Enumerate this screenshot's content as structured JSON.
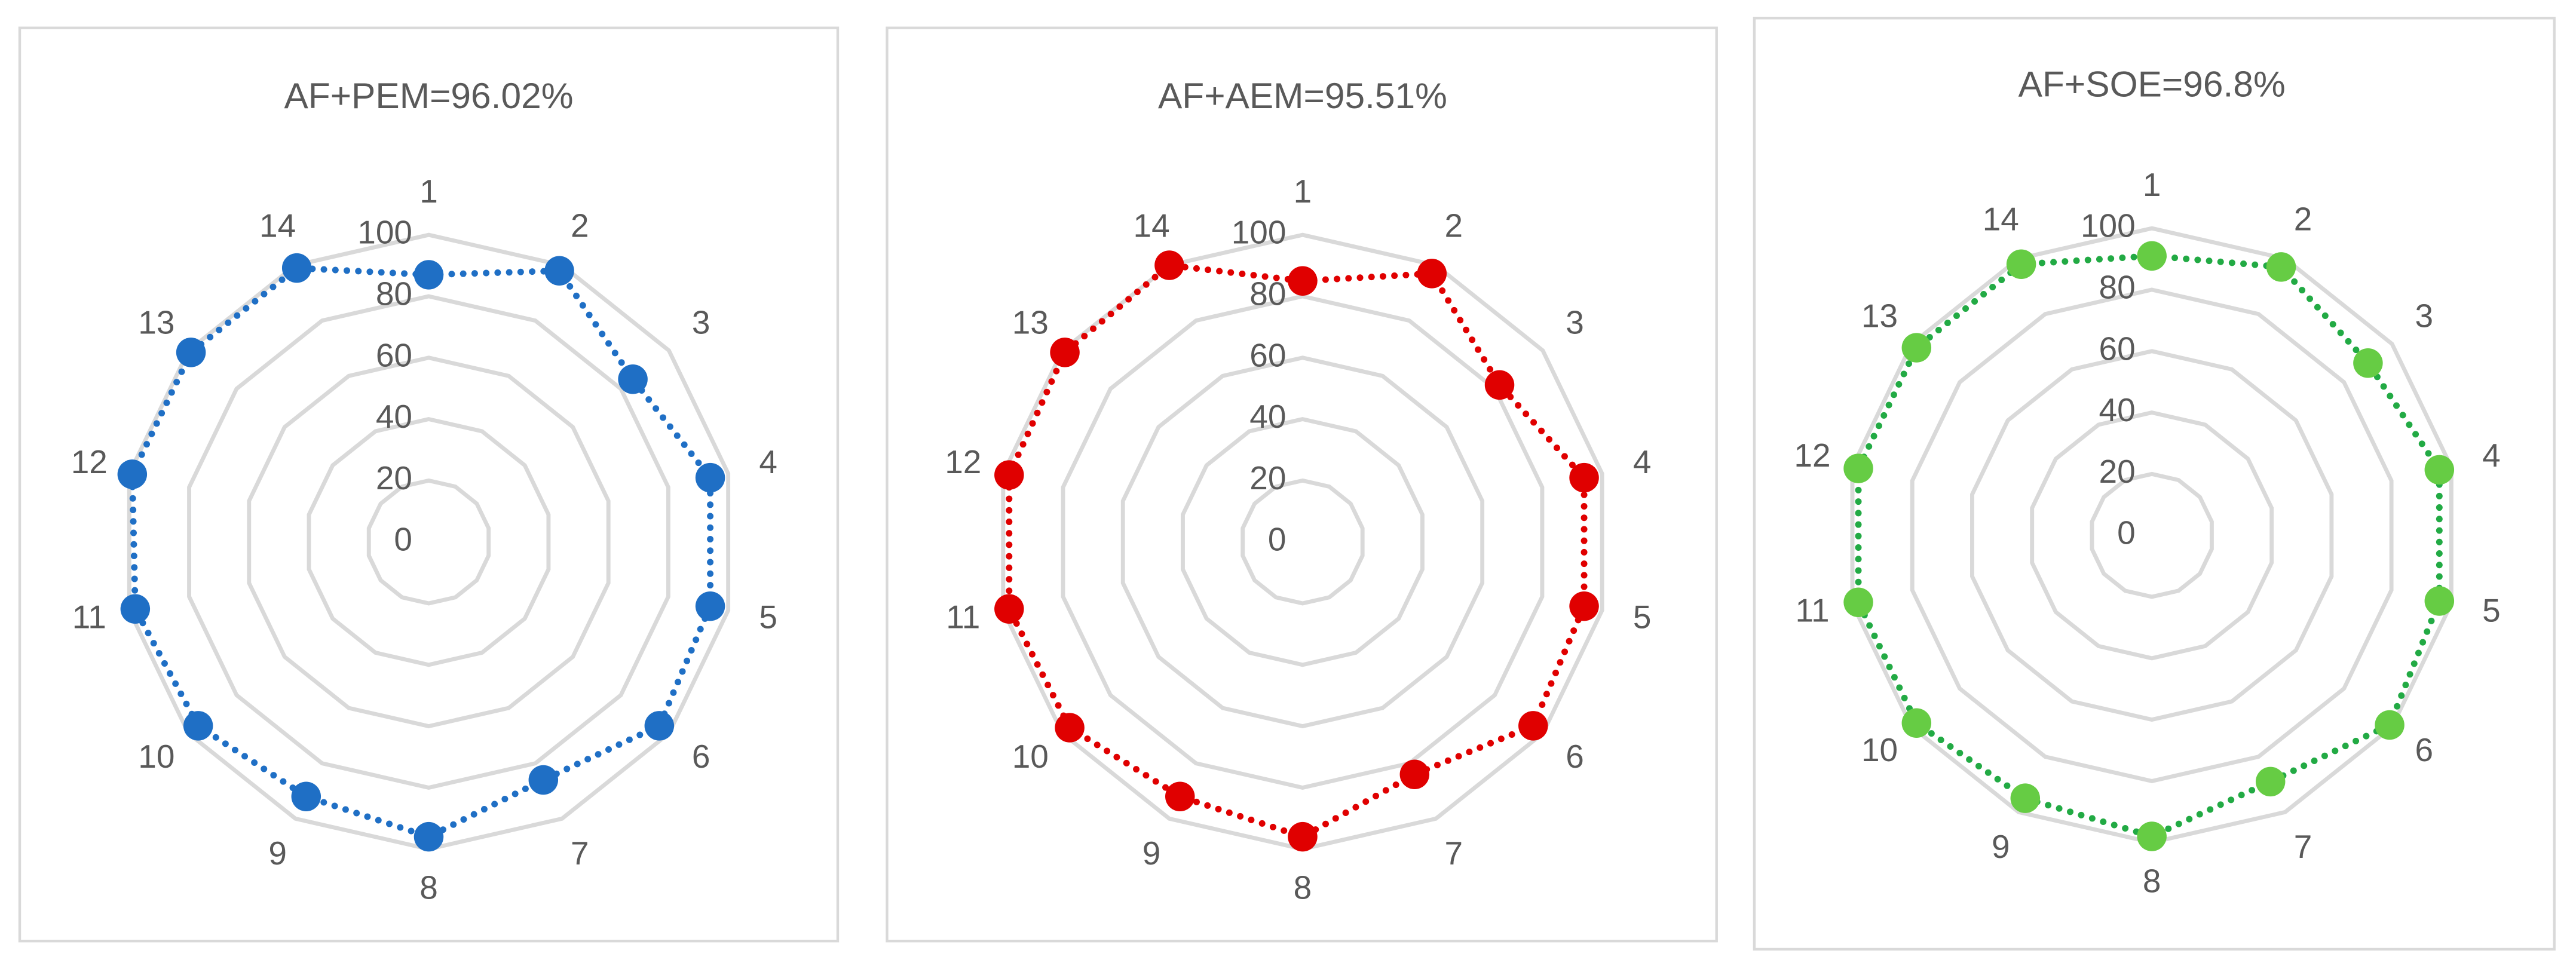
{
  "chart_data": [
    {
      "type": "radar",
      "title": "AF+PEM=96.02%",
      "categories": [
        "1",
        "2",
        "3",
        "4",
        "5",
        "6",
        "7",
        "8",
        "9",
        "10",
        "11",
        "12",
        "13",
        "14"
      ],
      "values": [
        87,
        98,
        85,
        94,
        94,
        96,
        86,
        96,
        92,
        96,
        98,
        99,
        99,
        99
      ],
      "color": "#1f6fc5",
      "marker_color": "#1f6fc5",
      "rlim": [
        0,
        100
      ],
      "rticks": [
        0,
        20,
        40,
        60,
        80,
        100
      ]
    },
    {
      "type": "radar",
      "title": "AF+AEM=95.51%",
      "categories": [
        "1",
        "2",
        "3",
        "4",
        "5",
        "6",
        "7",
        "8",
        "9",
        "10",
        "11",
        "12",
        "13",
        "14"
      ],
      "values": [
        85,
        97,
        82,
        94,
        94,
        96,
        84,
        96,
        92,
        97,
        98,
        98,
        99,
        100
      ],
      "color": "#e00000",
      "marker_color": "#e00000",
      "rlim": [
        0,
        100
      ],
      "rticks": [
        0,
        20,
        40,
        60,
        80,
        100
      ]
    },
    {
      "type": "radar",
      "title": "AF+SOE=96.8%",
      "categories": [
        "1",
        "2",
        "3",
        "4",
        "5",
        "6",
        "7",
        "8",
        "9",
        "10",
        "11",
        "12",
        "13",
        "14"
      ],
      "values": [
        91,
        97,
        90,
        96,
        96,
        99,
        89,
        98,
        95,
        98,
        98,
        98,
        98,
        98
      ],
      "color": "#22aa44",
      "marker_color": "#66cc44",
      "rlim": [
        0,
        100
      ],
      "rticks": [
        0,
        20,
        40,
        60,
        80,
        100
      ]
    }
  ]
}
